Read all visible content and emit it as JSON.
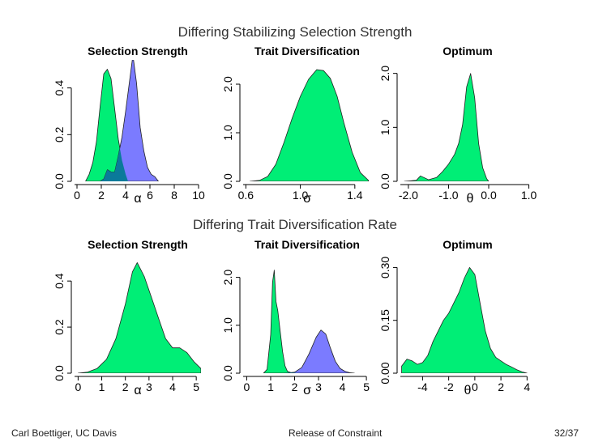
{
  "slide": {
    "row_titles": [
      "Differing Stabilizing Selection Strength",
      "Differing Trait Diversification Rate"
    ],
    "footer": {
      "author": "Carl Boettiger, UC Davis",
      "section": "Release of Constraint",
      "page": "32/37"
    }
  },
  "colors": {
    "green": "#00ee76",
    "blue": "#7b7bff",
    "overlap": "#0a7a9a",
    "outline": "#222222"
  },
  "chart_data": [
    {
      "type": "area",
      "title": "Selection Strength",
      "xlabel": "α",
      "ylabel": "",
      "xlim": [
        -0.2,
        10.2
      ],
      "ylim": [
        0,
        0.52
      ],
      "xticks": [
        0,
        2,
        4,
        6,
        8,
        10
      ],
      "xtick_labels": [
        "0",
        "2",
        "4",
        "6",
        "8",
        "10"
      ],
      "yticks": [
        0.0,
        0.2,
        0.4
      ],
      "ytick_labels": [
        "0.0",
        "0.2",
        "0.4"
      ],
      "series": [
        {
          "color": "green",
          "x": [
            0.7,
            1.0,
            1.3,
            1.6,
            1.9,
            2.2,
            2.5,
            2.8,
            3.1,
            3.4,
            3.7,
            4.0,
            4.2
          ],
          "y": [
            0,
            0.03,
            0.08,
            0.17,
            0.32,
            0.46,
            0.48,
            0.44,
            0.31,
            0.18,
            0.09,
            0.03,
            0
          ]
        },
        {
          "color": "blue",
          "x": [
            1.9,
            2.2,
            2.5,
            2.8,
            3.1,
            3.4,
            3.7,
            4.0,
            4.3,
            4.6,
            4.9,
            5.2,
            5.5,
            5.8,
            6.1,
            6.4,
            6.7
          ],
          "y": [
            0,
            0.01,
            0.05,
            0.04,
            0.04,
            0.11,
            0.19,
            0.3,
            0.42,
            0.54,
            0.42,
            0.23,
            0.13,
            0.06,
            0.03,
            0.02,
            0
          ]
        }
      ]
    },
    {
      "type": "area",
      "title": "Trait Diversification",
      "xlabel": "σ",
      "ylabel": "",
      "xlim": [
        0.58,
        1.52
      ],
      "ylim": [
        0,
        2.5
      ],
      "xticks": [
        0.6,
        1.0,
        1.4
      ],
      "xtick_labels": [
        "0.6",
        "1.0",
        "1.4"
      ],
      "yticks": [
        0.0,
        1.0,
        2.0
      ],
      "ytick_labels": [
        "0.0",
        "1.0",
        "2.0"
      ],
      "series": [
        {
          "color": "green",
          "x": [
            0.63,
            0.7,
            0.76,
            0.82,
            0.88,
            0.94,
            1.0,
            1.06,
            1.12,
            1.17,
            1.22,
            1.27,
            1.32,
            1.38,
            1.44,
            1.5
          ],
          "y": [
            0,
            0.02,
            0.1,
            0.35,
            0.8,
            1.3,
            1.75,
            2.1,
            2.3,
            2.28,
            2.12,
            1.75,
            1.2,
            0.6,
            0.18,
            0.02
          ]
        }
      ]
    },
    {
      "type": "area",
      "title": "Optimum",
      "xlabel": "θ",
      "ylabel": "",
      "xlim": [
        -2.2,
        1.15
      ],
      "ylim": [
        0,
        2.25
      ],
      "xticks": [
        -2.0,
        -1.0,
        0.0,
        1.0
      ],
      "xtick_labels": [
        "-2.0",
        "-1.0",
        "0.0",
        "1.0"
      ],
      "yticks": [
        0.0,
        1.0,
        2.0
      ],
      "ytick_labels": [
        "0.0",
        "1.0",
        "2.0"
      ],
      "series": [
        {
          "color": "green",
          "x": [
            -2.1,
            -1.8,
            -1.7,
            -1.5,
            -1.3,
            -1.15,
            -1.0,
            -0.85,
            -0.75,
            -0.65,
            -0.55,
            -0.45,
            -0.35,
            -0.25,
            -0.15,
            -0.05,
            0.0
          ],
          "y": [
            0,
            0.02,
            0.1,
            0.03,
            0.07,
            0.18,
            0.32,
            0.5,
            0.7,
            1.05,
            1.75,
            2.0,
            1.55,
            0.7,
            0.25,
            0.05,
            0
          ]
        }
      ]
    },
    {
      "type": "area",
      "title": "Selection Strength",
      "xlabel": "α",
      "ylabel": "",
      "xlim": [
        -0.15,
        5.2
      ],
      "ylim": [
        0,
        0.52
      ],
      "xticks": [
        0,
        1,
        2,
        3,
        4,
        5
      ],
      "xtick_labels": [
        "0",
        "1",
        "2",
        "3",
        "4",
        "5"
      ],
      "yticks": [
        0.0,
        0.2,
        0.4
      ],
      "ytick_labels": [
        "0.0",
        "0.2",
        "0.4"
      ],
      "series": [
        {
          "color": "green",
          "x": [
            0.0,
            0.4,
            0.8,
            1.2,
            1.6,
            2.0,
            2.3,
            2.5,
            2.8,
            3.1,
            3.4,
            3.7,
            4.0,
            4.3,
            4.6,
            4.9,
            5.2
          ],
          "y": [
            0,
            0.005,
            0.02,
            0.06,
            0.15,
            0.3,
            0.44,
            0.48,
            0.42,
            0.33,
            0.24,
            0.15,
            0.11,
            0.11,
            0.09,
            0.05,
            0.02
          ]
        }
      ]
    },
    {
      "type": "area",
      "title": "Trait Diversification",
      "xlabel": "σ",
      "ylabel": "",
      "xlim": [
        -0.15,
        5.2
      ],
      "ylim": [
        0,
        2.5
      ],
      "xticks": [
        0,
        1,
        2,
        3,
        4,
        5
      ],
      "xtick_labels": [
        "0",
        "1",
        "2",
        "3",
        "4",
        "5"
      ],
      "yticks": [
        0.0,
        1.0,
        2.0
      ],
      "ytick_labels": [
        "0.0",
        "1.0",
        "2.0"
      ],
      "series": [
        {
          "color": "green",
          "x": [
            0.7,
            0.85,
            1.0,
            1.08,
            1.15,
            1.22,
            1.3,
            1.38,
            1.5,
            1.6,
            1.7,
            1.85,
            2.1,
            2.3
          ],
          "y": [
            0,
            0.08,
            0.8,
            1.9,
            2.15,
            1.5,
            1.3,
            0.95,
            0.45,
            0.15,
            0.04,
            0.01,
            0.005,
            0
          ]
        },
        {
          "color": "blue",
          "x": [
            1.6,
            2.0,
            2.3,
            2.6,
            2.9,
            3.1,
            3.3,
            3.5,
            3.7,
            3.9,
            4.1,
            4.3,
            4.5
          ],
          "y": [
            0,
            0.02,
            0.12,
            0.4,
            0.75,
            0.9,
            0.82,
            0.52,
            0.25,
            0.1,
            0.04,
            0.01,
            0
          ]
        }
      ]
    },
    {
      "type": "area",
      "title": "Optimum",
      "xlabel": "θ",
      "ylabel": "",
      "xlim": [
        -5.7,
        4.6
      ],
      "ylim": [
        0,
        0.34
      ],
      "xticks": [
        -4,
        -2,
        0,
        2,
        4
      ],
      "xtick_labels": [
        "-4",
        "-2",
        "0",
        "2",
        "4"
      ],
      "yticks": [
        0.0,
        0.15,
        0.3
      ],
      "ytick_labels": [
        "0.00",
        "0.15",
        "0.30"
      ],
      "series": [
        {
          "color": "green",
          "x": [
            -5.6,
            -5.2,
            -4.8,
            -4.4,
            -4.0,
            -3.6,
            -3.2,
            -2.8,
            -2.4,
            -2.0,
            -1.6,
            -1.2,
            -0.8,
            -0.4,
            0.0,
            0.4,
            0.8,
            1.2,
            1.6,
            2.0,
            2.4,
            2.8,
            3.2,
            3.6,
            4.0
          ],
          "y": [
            0.02,
            0.04,
            0.035,
            0.025,
            0.03,
            0.05,
            0.09,
            0.12,
            0.15,
            0.17,
            0.2,
            0.23,
            0.27,
            0.3,
            0.28,
            0.2,
            0.12,
            0.07,
            0.045,
            0.035,
            0.025,
            0.018,
            0.01,
            0.004,
            0
          ]
        }
      ]
    }
  ]
}
